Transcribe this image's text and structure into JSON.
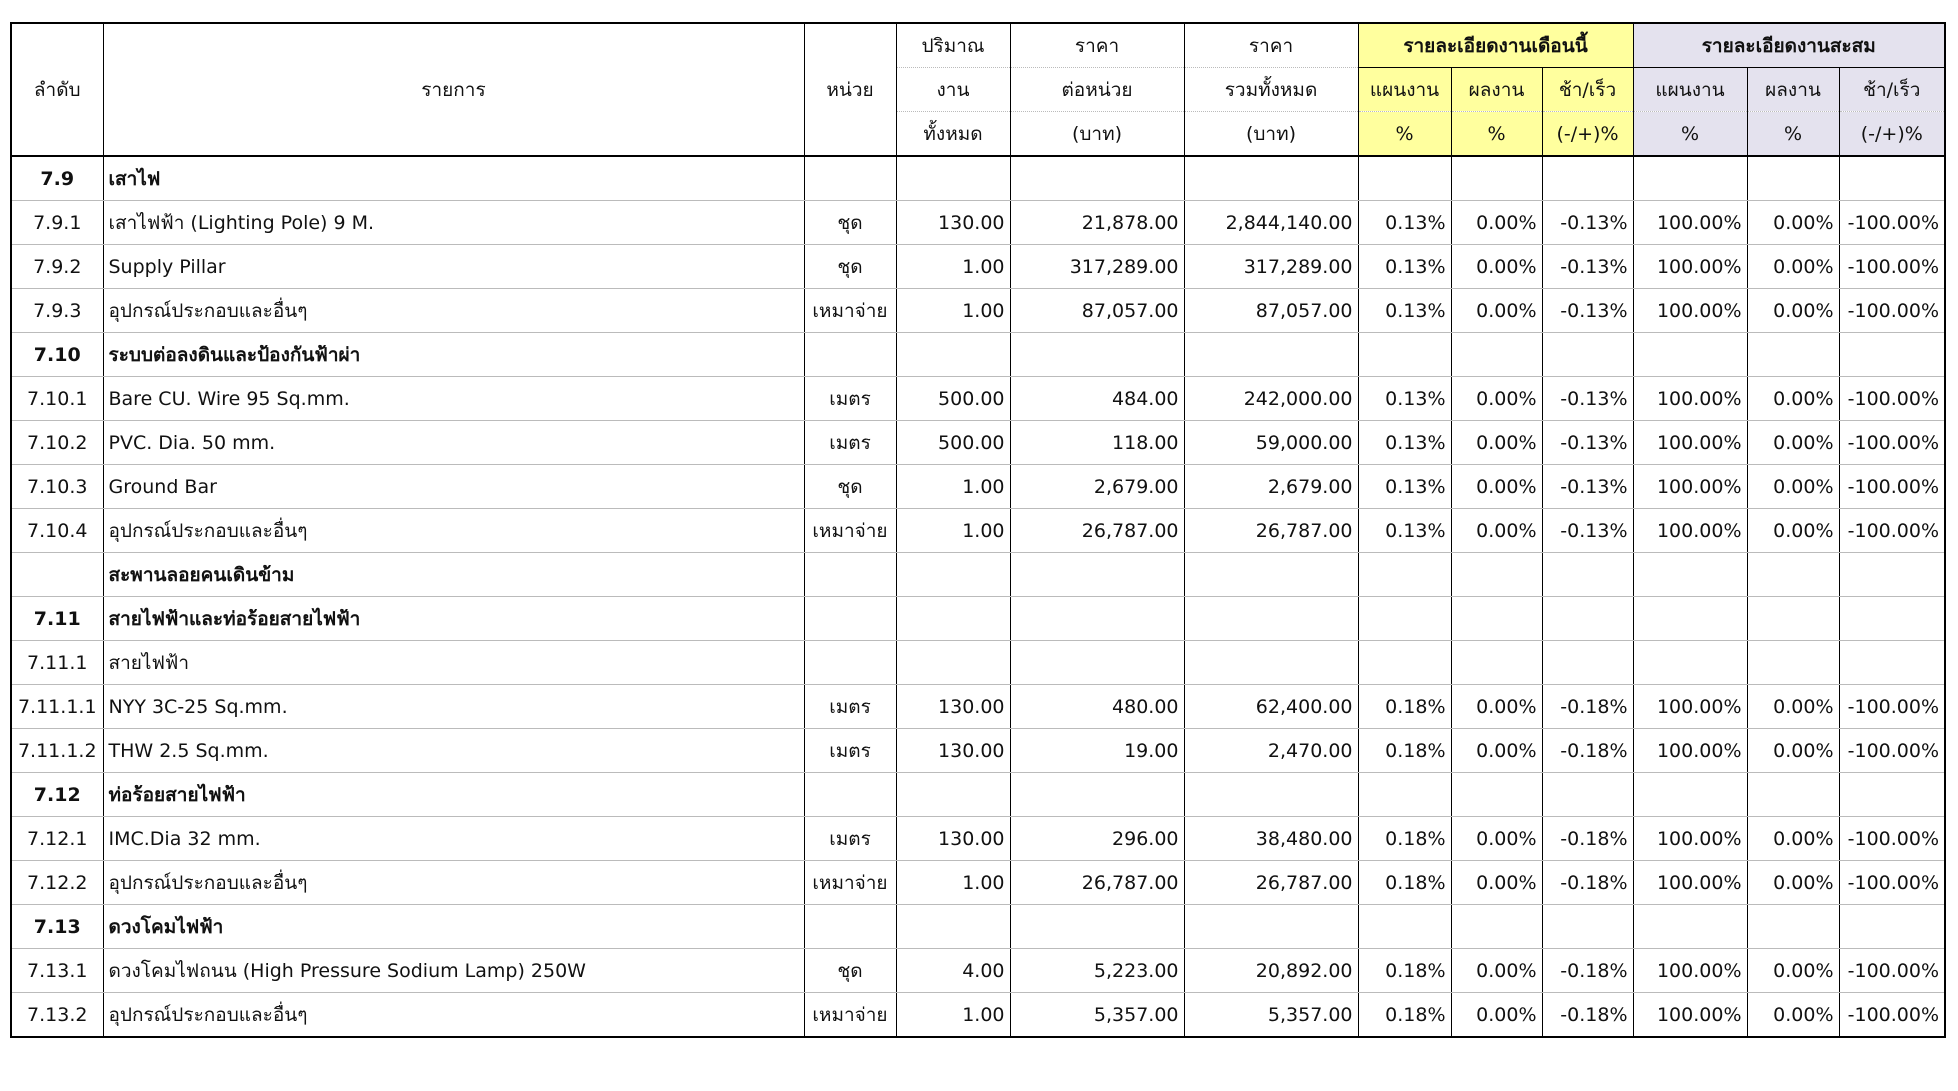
{
  "table": {
    "header": {
      "columns": [
        [
          "ลำดับ"
        ],
        [
          "รายการ"
        ],
        [
          "หน่วย"
        ],
        [
          "ปริมาณ",
          "งาน",
          "ทั้งหมด"
        ],
        [
          "ราคา",
          "ต่อหน่วย",
          "(บาท)"
        ],
        [
          "ราคา",
          "รวมทั้งหมด",
          "(บาท)"
        ]
      ],
      "groups": [
        {
          "title": "รายละเอียดงานเดือนนี้",
          "color": "#ffff9e",
          "columns": [
            [
              "แผนงาน",
              "%"
            ],
            [
              "ผลงาน",
              "%"
            ],
            [
              "ช้า/เร็ว",
              "(-/+)%"
            ]
          ]
        },
        {
          "title": "รายละเอียดงานสะสม",
          "color": "#e4e2ee",
          "columns": [
            [
              "แผนงาน",
              "%"
            ],
            [
              "ผลงาน",
              "%"
            ],
            [
              "ช้า/เร็ว",
              "(-/+)%"
            ]
          ]
        }
      ]
    },
    "rows": [
      {
        "no": "7.9",
        "item": "เสาไฟ",
        "bold": true
      },
      {
        "cells": [
          "7.9.1",
          "เสาไฟฟ้า (Lighting Pole) 9 M.",
          "ชุด",
          "130.00",
          "21,878.00",
          "2,844,140.00",
          "0.13%",
          "0.00%",
          "-0.13%",
          "100.00%",
          "0.00%",
          "-100.00%"
        ]
      },
      {
        "cells": [
          "7.9.2",
          "Supply Pillar",
          "ชุด",
          "1.00",
          "317,289.00",
          "317,289.00",
          "0.13%",
          "0.00%",
          "-0.13%",
          "100.00%",
          "0.00%",
          "-100.00%"
        ]
      },
      {
        "cells": [
          "7.9.3",
          "อุปกรณ์ประกอบและอื่นๆ",
          "เหมาจ่าย",
          "1.00",
          "87,057.00",
          "87,057.00",
          "0.13%",
          "0.00%",
          "-0.13%",
          "100.00%",
          "0.00%",
          "-100.00%"
        ]
      },
      {
        "no": "7.10",
        "item": "ระบบต่อลงดินและป้องกันฟ้าผ่า",
        "bold": true
      },
      {
        "cells": [
          "7.10.1",
          "Bare CU. Wire 95 Sq.mm.",
          "เมตร",
          "500.00",
          "484.00",
          "242,000.00",
          "0.13%",
          "0.00%",
          "-0.13%",
          "100.00%",
          "0.00%",
          "-100.00%"
        ]
      },
      {
        "cells": [
          "7.10.2",
          " PVC. Dia. 50 mm.",
          "เมตร",
          "500.00",
          "118.00",
          "59,000.00",
          "0.13%",
          "0.00%",
          "-0.13%",
          "100.00%",
          "0.00%",
          "-100.00%"
        ]
      },
      {
        "cells": [
          "7.10.3",
          "Ground Bar",
          "ชุด",
          "1.00",
          "2,679.00",
          "2,679.00",
          "0.13%",
          "0.00%",
          "-0.13%",
          "100.00%",
          "0.00%",
          "-100.00%"
        ]
      },
      {
        "cells": [
          "7.10.4",
          "อุปกรณ์ประกอบและอื่นๆ",
          "เหมาจ่าย",
          "1.00",
          "26,787.00",
          "26,787.00",
          "0.13%",
          "0.00%",
          "-0.13%",
          "100.00%",
          "0.00%",
          "-100.00%"
        ]
      },
      {
        "item": "สะพานลอยคนเดินข้าม",
        "bold": true
      },
      {
        "no": "7.11",
        "item": "สายไฟฟ้าและท่อร้อยสายไฟฟ้า",
        "bold": true
      },
      {
        "no": "7.11.1",
        "item": "สายไฟฟ้า",
        "bold": false
      },
      {
        "cells": [
          "7.11.1.1",
          "NYY 3C-25 Sq.mm.",
          "เมตร",
          "130.00",
          "480.00",
          "62,400.00",
          "0.18%",
          "0.00%",
          "-0.18%",
          "100.00%",
          "0.00%",
          "-100.00%"
        ]
      },
      {
        "cells": [
          "7.11.1.2",
          "THW 2.5 Sq.mm.",
          "เมตร",
          "130.00",
          "19.00",
          "2,470.00",
          "0.18%",
          "0.00%",
          "-0.18%",
          "100.00%",
          "0.00%",
          "-100.00%"
        ]
      },
      {
        "no": "7.12",
        "item": "ท่อร้อยสายไฟฟ้า",
        "bold": true
      },
      {
        "cells": [
          "7.12.1",
          " IMC.Dia 32 mm.",
          "เมตร",
          "130.00",
          "296.00",
          "38,480.00",
          "0.18%",
          "0.00%",
          "-0.18%",
          "100.00%",
          "0.00%",
          "-100.00%"
        ]
      },
      {
        "cells": [
          "7.12.2",
          "อุปกรณ์ประกอบและอื่นๆ",
          "เหมาจ่าย",
          "1.00",
          "26,787.00",
          "26,787.00",
          "0.18%",
          "0.00%",
          "-0.18%",
          "100.00%",
          "0.00%",
          "-100.00%"
        ]
      },
      {
        "no": "7.13",
        "item": "ดวงโคมไฟฟ้า",
        "bold": true
      },
      {
        "cells": [
          "7.13.1",
          "ดวงโคมไฟถนน (High Pressure Sodium Lamp) 250W",
          "ชุด",
          "4.00",
          "5,223.00",
          "20,892.00",
          "0.18%",
          "0.00%",
          "-0.18%",
          "100.00%",
          "0.00%",
          "-100.00%"
        ]
      },
      {
        "cells": [
          "7.13.2",
          "อุปกรณ์ประกอบและอื่นๆ",
          "เหมาจ่าย",
          "1.00",
          "5,357.00",
          "5,357.00",
          "0.18%",
          "0.00%",
          "-0.18%",
          "100.00%",
          "0.00%",
          "-100.00%"
        ]
      }
    ]
  }
}
